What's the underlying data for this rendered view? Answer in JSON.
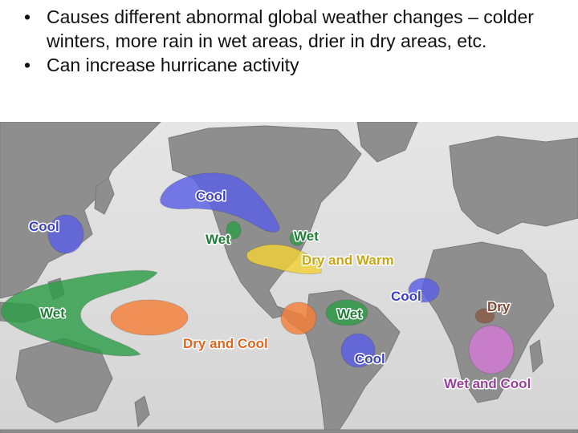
{
  "slide": {
    "bullets": [
      {
        "marker": "•",
        "text": "Causes different abnormal global weather changes – colder winters, more rain in wet areas, drier in dry areas, etc."
      },
      {
        "marker": "•",
        "text": "Can increase hurricane activity"
      }
    ]
  },
  "map": {
    "labels": {
      "cool_north_america": "Cool",
      "cool_east_asia": "Cool",
      "wet_nw_america": "Wet",
      "wet_ne_america": "Wet",
      "dry_warm_us": "Dry and Warm",
      "wet_indonesia": "Wet",
      "dry_cool_pacific": "Dry and Cool",
      "wet_south_america": "Wet",
      "cool_west_africa": "Cool",
      "dry_east_africa": "Dry",
      "cool_south_america": "Cool",
      "wet_cool_southern_africa": "Wet and Cool"
    },
    "colors": {
      "cool": "#5b5fe6",
      "wet": "#2e9e48",
      "dry_warm": "#f2d238",
      "dry_cool": "#f5803a",
      "dry": "#8a5a44",
      "wet_cool": "#d57ad6"
    }
  }
}
